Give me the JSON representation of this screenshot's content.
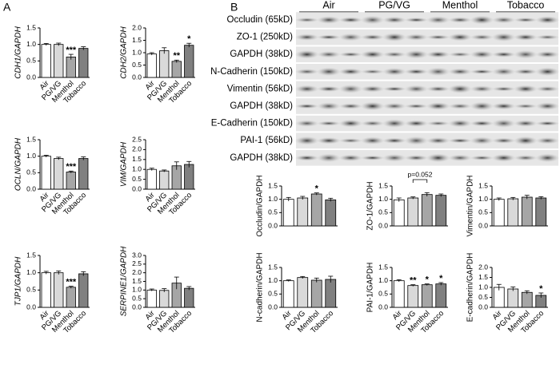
{
  "panel_labels": [
    "A",
    "B"
  ],
  "blot": {
    "groups": [
      "Air",
      "PG/VG",
      "Menthol",
      "Tobacco"
    ],
    "rows": [
      "Occludin (65kD)",
      "ZO-1 (250kD)",
      "GAPDH (38kD)",
      "N-Cadherin (150kD)",
      "Vimentin (56kD)",
      "GAPDH (38kD)",
      "E-Cadherin (150kD)",
      "PAI-1 (56kD)",
      "GAPDH (38kD)"
    ]
  },
  "chart_data": [
    {
      "type": "bar",
      "ylabel": "CDH1/GAPDH",
      "categories": [
        "Air",
        "PG/VG",
        "Menthol",
        "Tobacco"
      ],
      "values": [
        1.0,
        1.0,
        0.62,
        0.88
      ],
      "errors": [
        0.03,
        0.04,
        0.08,
        0.05
      ],
      "significance": [
        null,
        null,
        "***",
        null
      ],
      "colors": [
        "#ffffff",
        "#d9d9d9",
        "#a6a6a6",
        "#808080"
      ],
      "ylim": [
        0,
        1.5
      ],
      "yticks": [
        {
          "value": 0,
          "label": "0.0"
        },
        0.5,
        {
          "value": 1,
          "label": "1.0"
        },
        1.5
      ]
    },
    {
      "type": "bar",
      "ylabel": "CDH2/GAPDH",
      "categories": [
        "Air",
        "PG/VG",
        "Menthol",
        "Tobacco"
      ],
      "values": [
        0.95,
        1.08,
        0.65,
        1.3
      ],
      "errors": [
        0.05,
        0.12,
        0.05,
        0.08
      ],
      "significance": [
        null,
        null,
        "**",
        "*"
      ],
      "colors": [
        "#ffffff",
        "#d9d9d9",
        "#a6a6a6",
        "#808080"
      ],
      "ylim": [
        0,
        2
      ],
      "yticks": [
        {
          "value": 0,
          "label": "0.0"
        },
        0.5,
        {
          "value": 1,
          "label": "1.0"
        },
        1.5,
        {
          "value": 2,
          "label": "2.0"
        }
      ]
    },
    {
      "type": "bar",
      "ylabel": "OCLN/GAPDH",
      "categories": [
        "Air",
        "PG/VG",
        "Menthol",
        "Tobacco"
      ],
      "values": [
        1.0,
        0.93,
        0.52,
        0.93
      ],
      "errors": [
        0.03,
        0.04,
        0.03,
        0.05
      ],
      "significance": [
        null,
        null,
        "***",
        null
      ],
      "colors": [
        "#ffffff",
        "#d9d9d9",
        "#a6a6a6",
        "#808080"
      ],
      "ylim": [
        0,
        1.5
      ],
      "yticks": [
        {
          "value": 0,
          "label": "0.0"
        },
        0.5,
        {
          "value": 1,
          "label": "1.0"
        },
        1.5
      ]
    },
    {
      "type": "bar",
      "ylabel": "VIM/GAPDH",
      "categories": [
        "Air",
        "PG/VG",
        "Menthol",
        "Tobacco"
      ],
      "values": [
        1.0,
        0.92,
        1.18,
        1.25
      ],
      "errors": [
        0.06,
        0.05,
        0.2,
        0.15
      ],
      "significance": [
        null,
        null,
        null,
        null
      ],
      "colors": [
        "#ffffff",
        "#d9d9d9",
        "#a6a6a6",
        "#808080"
      ],
      "ylim": [
        0,
        2.5
      ],
      "yticks": [
        {
          "value": 0,
          "label": "0.0"
        },
        0.5,
        {
          "value": 1,
          "label": "1.0"
        },
        1.5,
        {
          "value": 2,
          "label": "2.0"
        },
        2.5
      ]
    },
    {
      "type": "bar",
      "ylabel": "TJP1/GAPDH",
      "categories": [
        "Air",
        "PG/VG",
        "Menthol",
        "Tobacco"
      ],
      "values": [
        1.0,
        1.0,
        0.58,
        0.97
      ],
      "errors": [
        0.04,
        0.05,
        0.03,
        0.06
      ],
      "significance": [
        null,
        null,
        "***",
        null
      ],
      "colors": [
        "#ffffff",
        "#d9d9d9",
        "#a6a6a6",
        "#808080"
      ],
      "ylim": [
        0,
        1.5
      ],
      "yticks": [
        {
          "value": 0,
          "label": "0.0"
        },
        0.5,
        {
          "value": 1,
          "label": "1.0"
        },
        1.5
      ]
    },
    {
      "type": "bar",
      "ylabel": "SERPINE1/GAPDH",
      "categories": [
        "Air",
        "PG/VG",
        "Menthol",
        "Tobacco"
      ],
      "values": [
        1.0,
        0.98,
        1.4,
        1.1
      ],
      "errors": [
        0.06,
        0.1,
        0.35,
        0.1
      ],
      "significance": [
        null,
        null,
        null,
        null
      ],
      "colors": [
        "#ffffff",
        "#d9d9d9",
        "#a6a6a6",
        "#808080"
      ],
      "ylim": [
        0,
        3
      ],
      "yticks": [
        {
          "value": 0,
          "label": "0.0"
        },
        0.5,
        {
          "value": 1,
          "label": "1.0"
        },
        1.5,
        {
          "value": 2,
          "label": "2.0"
        },
        2.5,
        {
          "value": 3,
          "label": "3.0"
        }
      ]
    },
    {
      "type": "bar",
      "ylabel": "Occludin/GAPDH",
      "values": [
        1.0,
        1.05,
        1.2,
        0.98
      ],
      "errors": [
        0.07,
        0.06,
        0.04,
        0.06
      ],
      "significance": [
        null,
        null,
        "*",
        null
      ],
      "colors": [
        "#ffffff",
        "#d9d9d9",
        "#a6a6a6",
        "#808080"
      ],
      "ylim": [
        0,
        1.5
      ],
      "yticks": [
        {
          "value": 0,
          "label": "0.0"
        },
        0.5,
        {
          "value": 1,
          "label": "1.0"
        },
        1.5
      ]
    },
    {
      "type": "bar",
      "ylabel": "ZO-1/GAPDH",
      "values": [
        0.98,
        1.05,
        1.18,
        1.15
      ],
      "errors": [
        0.07,
        0.04,
        0.07,
        0.05
      ],
      "significance": [
        null,
        null,
        null,
        null
      ],
      "bracket_label": "p=0.052",
      "colors": [
        "#ffffff",
        "#d9d9d9",
        "#a6a6a6",
        "#808080"
      ],
      "ylim": [
        0,
        1.5
      ],
      "yticks": [
        {
          "value": 0,
          "label": "0.0"
        },
        0.5,
        {
          "value": 1,
          "label": "1.0"
        },
        1.5
      ]
    },
    {
      "type": "bar",
      "ylabel": "Vimentin/GAPDH",
      "values": [
        1.0,
        1.02,
        1.08,
        1.05
      ],
      "errors": [
        0.05,
        0.05,
        0.07,
        0.05
      ],
      "significance": [
        null,
        null,
        null,
        null
      ],
      "colors": [
        "#ffffff",
        "#d9d9d9",
        "#a6a6a6",
        "#808080"
      ],
      "ylim": [
        0,
        1.5
      ],
      "yticks": [
        {
          "value": 0,
          "label": "0.0"
        },
        0.5,
        {
          "value": 1,
          "label": "1.0"
        },
        1.5
      ]
    },
    {
      "type": "bar",
      "ylabel": "N-cadherin/GAPDH",
      "categories": [
        "Air",
        "PG/VG",
        "Menthol",
        "Tobacco"
      ],
      "values": [
        1.0,
        1.12,
        1.02,
        1.05
      ],
      "errors": [
        0.03,
        0.04,
        0.08,
        0.12
      ],
      "significance": [
        null,
        null,
        null,
        null
      ],
      "colors": [
        "#ffffff",
        "#d9d9d9",
        "#a6a6a6",
        "#808080"
      ],
      "ylim": [
        0,
        1.5
      ],
      "yticks": [
        {
          "value": 0,
          "label": "0.0"
        },
        0.5,
        {
          "value": 1,
          "label": "1.0"
        },
        1.5
      ]
    },
    {
      "type": "bar",
      "ylabel": "PAI-1/GAPDH",
      "categories": [
        "Air",
        "PG/VG",
        "Menthol",
        "Tobacco"
      ],
      "values": [
        1.0,
        0.82,
        0.85,
        0.88
      ],
      "errors": [
        0.04,
        0.03,
        0.03,
        0.05
      ],
      "significance": [
        null,
        "**",
        "*",
        "*"
      ],
      "colors": [
        "#ffffff",
        "#d9d9d9",
        "#a6a6a6",
        "#808080"
      ],
      "ylim": [
        0,
        1.5
      ],
      "yticks": [
        {
          "value": 0,
          "label": "0.0"
        },
        0.5,
        {
          "value": 1,
          "label": "1.0"
        },
        1.5
      ]
    },
    {
      "type": "bar",
      "ylabel": "E-cadherin/GAPDH",
      "categories": [
        "Air",
        "PG/VG",
        "Menthol",
        "Tobacco"
      ],
      "values": [
        1.0,
        0.92,
        0.75,
        0.6
      ],
      "errors": [
        0.15,
        0.1,
        0.08,
        0.12
      ],
      "significance": [
        null,
        null,
        null,
        "*"
      ],
      "colors": [
        "#ffffff",
        "#d9d9d9",
        "#a6a6a6",
        "#808080"
      ],
      "ylim": [
        0,
        2
      ],
      "yticks": [
        {
          "value": 0,
          "label": "0.0"
        },
        0.5,
        {
          "value": 1,
          "label": "1.0"
        },
        1.5,
        {
          "value": 2,
          "label": "2.0"
        }
      ]
    }
  ]
}
